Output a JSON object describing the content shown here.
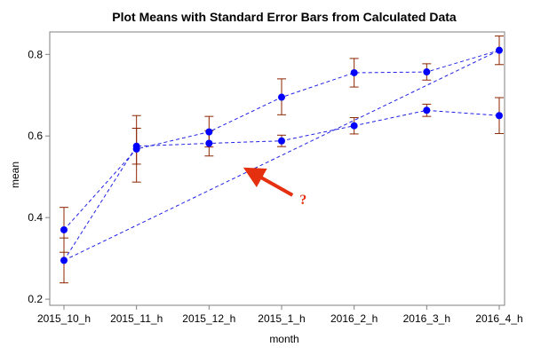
{
  "chart_data": {
    "type": "line",
    "title": "Plot Means with Standard Error Bars from Calculated Data",
    "xlabel": "month",
    "ylabel": "mean",
    "categories": [
      "2015_10_h",
      "2015_11_h",
      "2015_12_h",
      "2015_1_h",
      "2016_2_h",
      "2016_3_h",
      "2016_4_h"
    ],
    "ylim": [
      0.185,
      0.855
    ],
    "yticks": [
      0.2,
      0.4,
      0.6,
      0.8
    ],
    "grid": false,
    "legend": "none",
    "series": [
      {
        "values": [
          0.37,
          0.568,
          0.61,
          0.695,
          0.755,
          0.757,
          0.81
        ],
        "err_low": [
          0.315,
          0.487,
          0.573,
          0.652,
          0.72,
          0.737,
          0.775
        ],
        "err_high": [
          0.425,
          0.65,
          0.648,
          0.74,
          0.79,
          0.777,
          0.845
        ]
      },
      {
        "values": [
          0.295,
          0.575,
          0.582,
          0.588,
          0.625,
          0.663,
          0.65
        ],
        "err_low": [
          0.24,
          0.531,
          0.551,
          0.574,
          0.605,
          0.648,
          0.606
        ],
        "err_high": [
          0.35,
          0.619,
          0.613,
          0.602,
          0.645,
          0.678,
          0.694
        ]
      },
      {
        "values": [
          0.295,
          null,
          null,
          null,
          null,
          null,
          0.81
        ]
      }
    ],
    "annotation": {
      "text": "?",
      "arrow_from": {
        "category_index": 3.15,
        "value": 0.455
      },
      "arrow_to": {
        "category_index": 2.6,
        "value": 0.51
      }
    },
    "colors": {
      "line": "#2020e6",
      "marker": "#0000ff",
      "error_bar": "#8b2500",
      "annotation": "#e53010",
      "frame": "#808080"
    }
  }
}
